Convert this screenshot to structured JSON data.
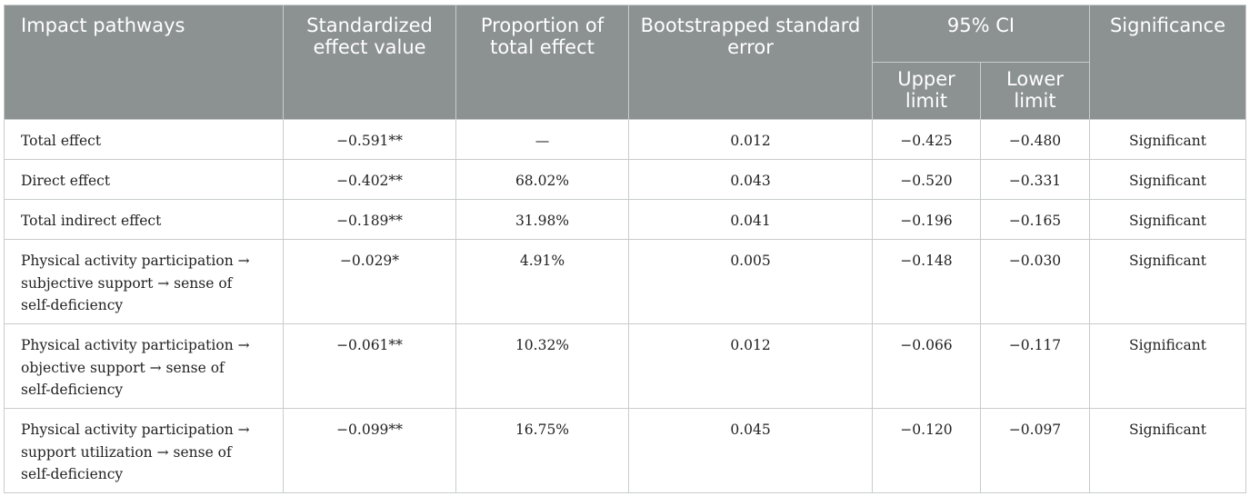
{
  "table": {
    "headers": {
      "pathway": "Impact pathways",
      "effect": "Standardized effect value",
      "proportion": "Proportion of total effect",
      "se": "Bootstrapped standard error",
      "ci": "95% CI",
      "upper": "Upper limit",
      "lower": "Lower limit",
      "significance": "Significance"
    },
    "rows": [
      {
        "pathway": "Total effect",
        "effect": "−0.591**",
        "proportion": "—",
        "se": "0.012",
        "upper": "−0.425",
        "lower": "−0.480",
        "significance": "Significant"
      },
      {
        "pathway": "Direct effect",
        "effect": "−0.402**",
        "proportion": "68.02%",
        "se": "0.043",
        "upper": "−0.520",
        "lower": "−0.331",
        "significance": "Significant"
      },
      {
        "pathway": "Total indirect effect",
        "effect": "−0.189**",
        "proportion": "31.98%",
        "se": "0.041",
        "upper": "−0.196",
        "lower": "−0.165",
        "significance": "Significant"
      },
      {
        "pathway": "Physical activity participation → subjective support → sense of self-deficiency",
        "effect": "−0.029*",
        "proportion": "4.91%",
        "se": "0.005",
        "upper": "−0.148",
        "lower": "−0.030",
        "significance": "Significant"
      },
      {
        "pathway": "Physical activity participation → objective support → sense of self-deficiency",
        "effect": "−0.061**",
        "proportion": "10.32%",
        "se": "0.012",
        "upper": "−0.066",
        "lower": "−0.117",
        "significance": "Significant"
      },
      {
        "pathway": "Physical activity participation → support utilization → sense of self-deficiency",
        "effect": "−0.099**",
        "proportion": "16.75%",
        "se": "0.045",
        "upper": "−0.120",
        "lower": "−0.097",
        "significance": "Significant"
      }
    ]
  },
  "colors": {
    "header_bg": "#8c9191",
    "header_text": "#ffffff",
    "border": "#c9cccc",
    "body_text": "#222222"
  }
}
